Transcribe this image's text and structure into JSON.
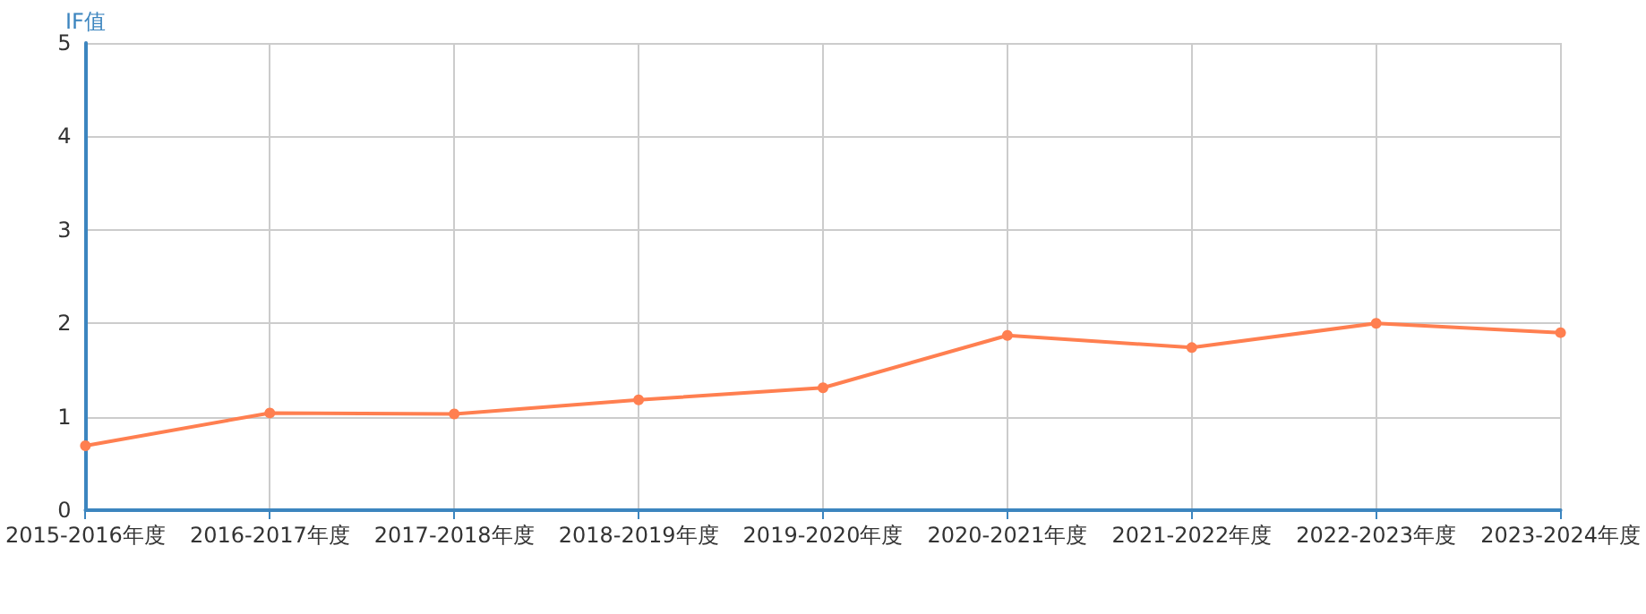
{
  "chart_data": {
    "type": "line",
    "ylabel": "IF值",
    "categories": [
      "2015-2016年度",
      "2016-2017年度",
      "2017-2018年度",
      "2018-2019年度",
      "2019-2020年度",
      "2020-2021年度",
      "2021-2022年度",
      "2022-2023年度",
      "2023-2024年度"
    ],
    "series": [
      {
        "color": "#ff7f50",
        "values": [
          0.69,
          1.04,
          1.03,
          1.18,
          1.31,
          1.87,
          1.74,
          2.0,
          1.9
        ]
      }
    ],
    "ylim": [
      0,
      5
    ],
    "yticks": [
      0,
      1,
      2,
      3,
      4,
      5
    ],
    "grid": true,
    "marker": "circle",
    "line_style": "solid"
  }
}
